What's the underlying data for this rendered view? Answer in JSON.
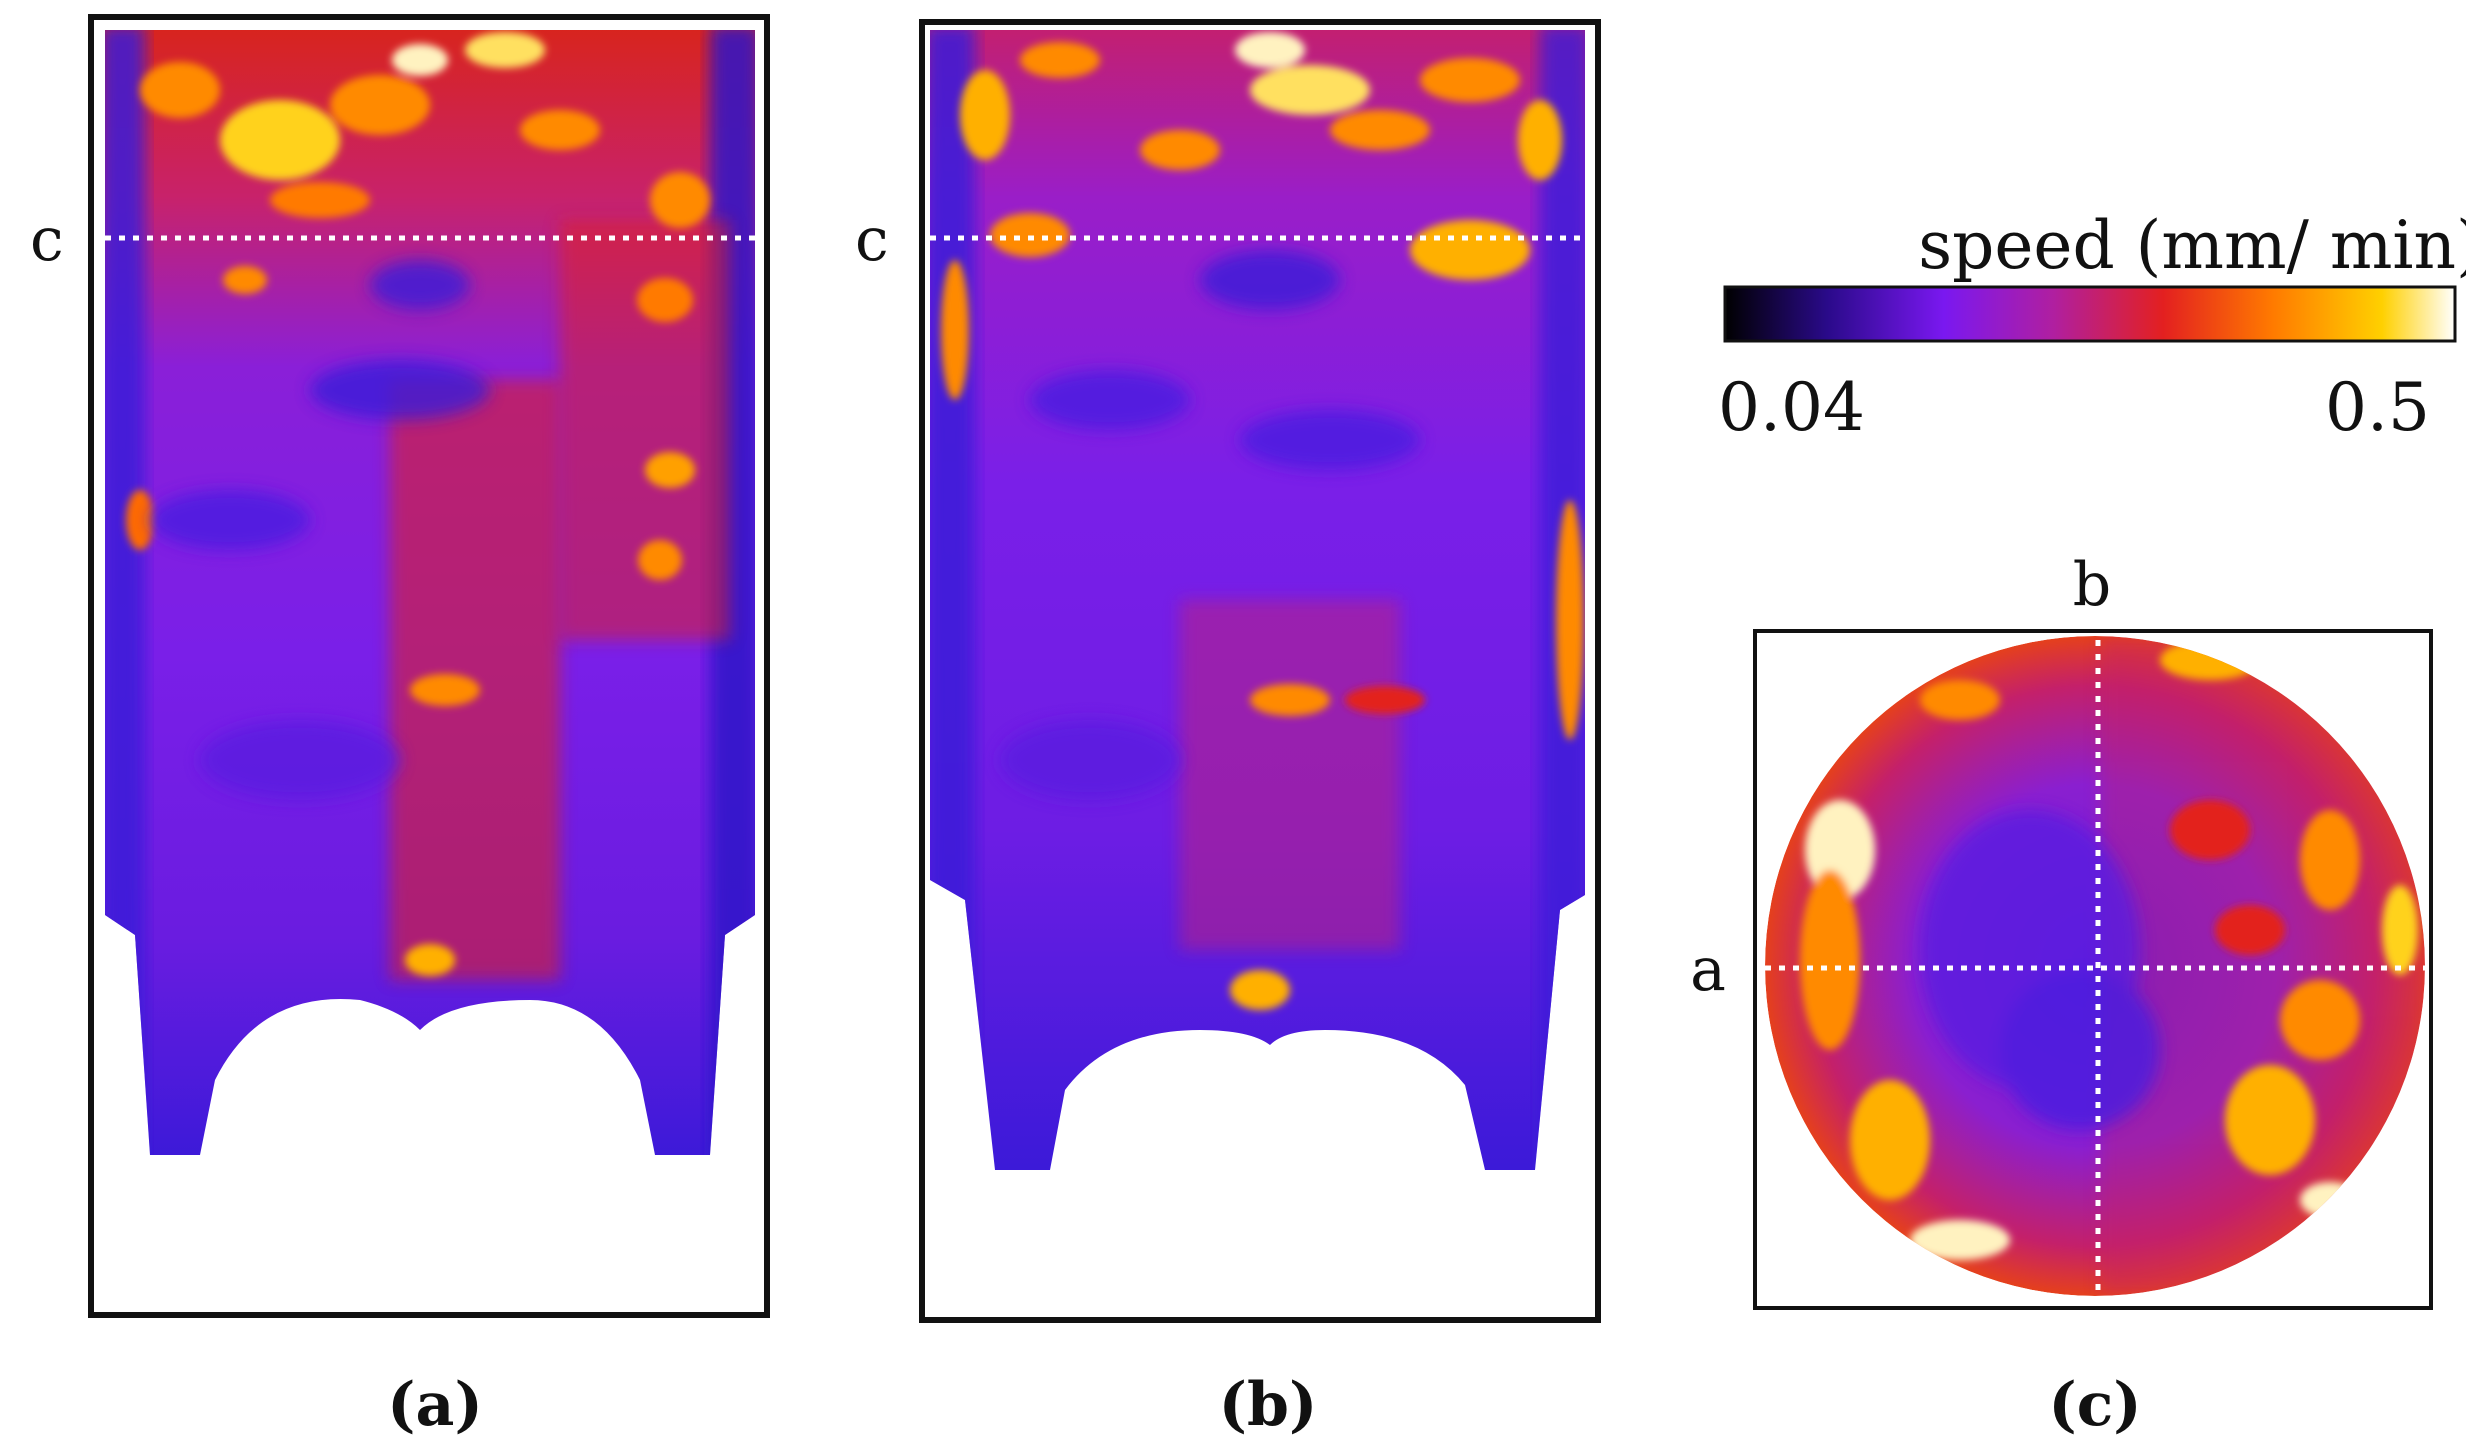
{
  "figure": {
    "description_labels": {
      "panel_a_caption": "(a)",
      "panel_b_caption": "(b)",
      "panel_c_caption": "(c)",
      "panel_a_cut_marker": "c",
      "panel_b_cut_marker": "c",
      "panel_c_marker_top": "b",
      "panel_c_marker_left": "a"
    },
    "colorbar": {
      "title": "speed (mm/ min)",
      "min_label": "0.04",
      "max_label": "0.5",
      "colors": [
        "#000000",
        "#2a0a8a",
        "#7a18f0",
        "#b01fa0",
        "#e32020",
        "#ff7a00",
        "#ffd000",
        "#ffffff"
      ]
    },
    "palette": {
      "blue": "#3b1ad8",
      "purple": "#7a1fe8",
      "magenta": "#b3229c",
      "red": "#e5201c",
      "orange": "#ff8a00",
      "yellow": "#ffd21a",
      "white": "#fff8e0",
      "frame": "#111111",
      "dash": "#ffffff"
    }
  }
}
